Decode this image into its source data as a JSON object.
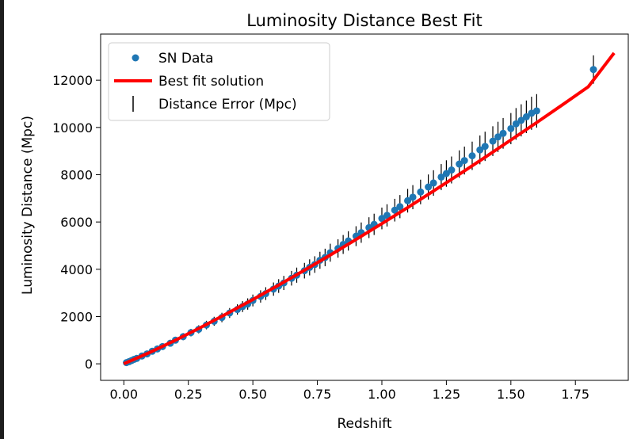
{
  "chart_data": {
    "type": "scatter",
    "title": "Luminosity Distance Best Fit",
    "xlabel": "Redshift",
    "ylabel": "Luminosity Distance (Mpc)",
    "xlim": [
      -0.09,
      1.955
    ],
    "ylim": [
      -700,
      13950
    ],
    "xticks": [
      0.0,
      0.25,
      0.5,
      0.75,
      1.0,
      1.25,
      1.5,
      1.75
    ],
    "xtick_labels": [
      "0.00",
      "0.25",
      "0.50",
      "0.75",
      "1.00",
      "1.25",
      "1.50",
      "1.75"
    ],
    "yticks": [
      0,
      2000,
      4000,
      6000,
      8000,
      10000,
      12000
    ],
    "ytick_labels": [
      "0",
      "2000",
      "4000",
      "6000",
      "8000",
      "10000",
      "12000"
    ],
    "legend": {
      "position": "upper-left",
      "entries": [
        "SN Data",
        "Best fit solution",
        "Distance Error (Mpc)"
      ]
    },
    "colors": {
      "data": "#1f77b4",
      "fit": "#ff0000",
      "error": "#000000"
    },
    "series": [
      {
        "name": "SN Data",
        "kind": "points",
        "x": [
          0.01,
          0.02,
          0.03,
          0.04,
          0.05,
          0.07,
          0.09,
          0.11,
          0.13,
          0.15,
          0.18,
          0.2,
          0.23,
          0.26,
          0.29,
          0.32,
          0.35,
          0.38,
          0.41,
          0.44,
          0.46,
          0.48,
          0.5,
          0.53,
          0.55,
          0.58,
          0.6,
          0.62,
          0.65,
          0.67,
          0.7,
          0.72,
          0.74,
          0.76,
          0.78,
          0.8,
          0.83,
          0.85,
          0.87,
          0.9,
          0.92,
          0.95,
          0.97,
          1.0,
          1.02,
          1.05,
          1.07,
          1.1,
          1.12,
          1.15,
          1.18,
          1.2,
          1.23,
          1.25,
          1.27,
          1.3,
          1.32,
          1.35,
          1.38,
          1.4,
          1.43,
          1.45,
          1.47,
          1.5,
          1.52,
          1.54,
          1.56,
          1.58,
          1.6,
          1.82
        ],
        "y": [
          50,
          90,
          140,
          190,
          230,
          330,
          420,
          530,
          630,
          730,
          870,
          1000,
          1150,
          1320,
          1460,
          1640,
          1800,
          1960,
          2150,
          2300,
          2420,
          2530,
          2680,
          2850,
          2970,
          3160,
          3290,
          3420,
          3620,
          3750,
          3940,
          4080,
          4200,
          4380,
          4500,
          4700,
          4880,
          5050,
          5200,
          5400,
          5550,
          5760,
          5900,
          6150,
          6280,
          6500,
          6650,
          6900,
          7050,
          7270,
          7480,
          7650,
          7900,
          8050,
          8200,
          8450,
          8600,
          8800,
          9050,
          9200,
          9420,
          9600,
          9750,
          9950,
          10150,
          10300,
          10450,
          10600,
          10700,
          12450
        ],
        "err": [
          30,
          40,
          50,
          60,
          60,
          80,
          90,
          100,
          110,
          120,
          130,
          140,
          150,
          160,
          170,
          180,
          190,
          200,
          210,
          220,
          230,
          240,
          250,
          260,
          270,
          280,
          290,
          300,
          310,
          320,
          330,
          340,
          350,
          360,
          370,
          380,
          390,
          400,
          410,
          420,
          430,
          440,
          450,
          460,
          470,
          480,
          490,
          500,
          510,
          520,
          530,
          540,
          550,
          560,
          570,
          580,
          590,
          600,
          610,
          620,
          630,
          640,
          650,
          660,
          670,
          680,
          690,
          700,
          710,
          600
        ]
      },
      {
        "name": "Best fit solution",
        "kind": "line",
        "x": [
          0.0,
          0.1,
          0.2,
          0.3,
          0.4,
          0.5,
          0.6,
          0.7,
          0.8,
          0.9,
          1.0,
          1.1,
          1.2,
          1.3,
          1.4,
          1.5,
          1.6,
          1.7,
          1.8,
          1.9
        ],
        "y": [
          0,
          480,
          1000,
          1550,
          2130,
          2720,
          3330,
          3960,
          4600,
          5260,
          5930,
          6610,
          7310,
          8020,
          8740,
          9470,
          10210,
          10960,
          11720,
          13150
        ]
      }
    ]
  }
}
